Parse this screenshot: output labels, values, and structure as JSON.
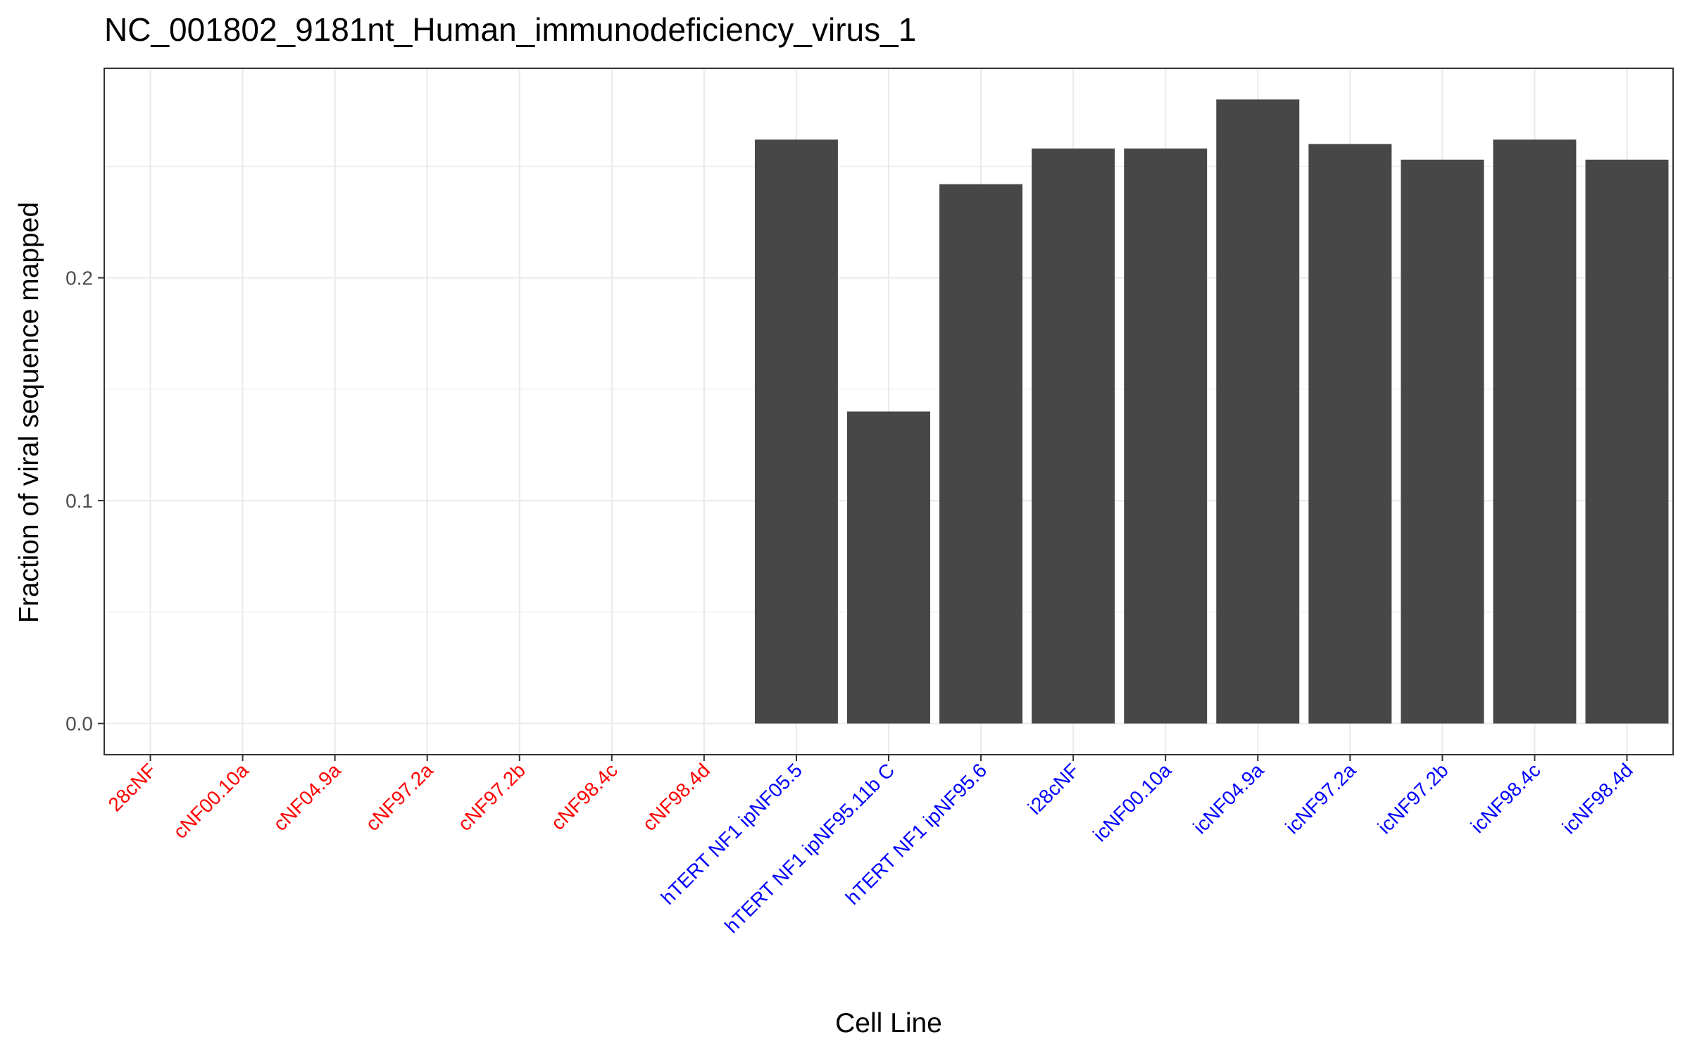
{
  "chart_data": {
    "type": "bar",
    "title": "NC_001802_9181nt_Human_immunodeficiency_virus_1",
    "xlabel": "Cell Line",
    "ylabel": "Fraction of viral sequence mapped",
    "categories": [
      "28cNF",
      "cNF00.10a",
      "cNF04.9a",
      "cNF97.2a",
      "cNF97.2b",
      "cNF98.4c",
      "cNF98.4d",
      "hTERT NF1 ipNF05.5",
      "hTERT NF1 ipNF95.11b C",
      "hTERT NF1 ipNF95.6",
      "i28cNF",
      "icNF00.10a",
      "icNF04.9a",
      "icNF97.2a",
      "icNF97.2b",
      "icNF98.4c",
      "icNF98.4d"
    ],
    "values": [
      0,
      0,
      0,
      0,
      0,
      0,
      0,
      0.262,
      0.14,
      0.242,
      0.258,
      0.258,
      0.28,
      0.26,
      0.253,
      0.262,
      0.253
    ],
    "label_colors": [
      "#ff0000",
      "#ff0000",
      "#ff0000",
      "#ff0000",
      "#ff0000",
      "#ff0000",
      "#ff0000",
      "#0000ff",
      "#0000ff",
      "#0000ff",
      "#0000ff",
      "#0000ff",
      "#0000ff",
      "#0000ff",
      "#0000ff",
      "#0000ff",
      "#0000ff"
    ],
    "bar_color": "#474747",
    "yticks": [
      "0.0",
      "0.1",
      "0.2"
    ],
    "ylim": [
      -0.014,
      0.294
    ],
    "grid": true,
    "legend": "none"
  }
}
